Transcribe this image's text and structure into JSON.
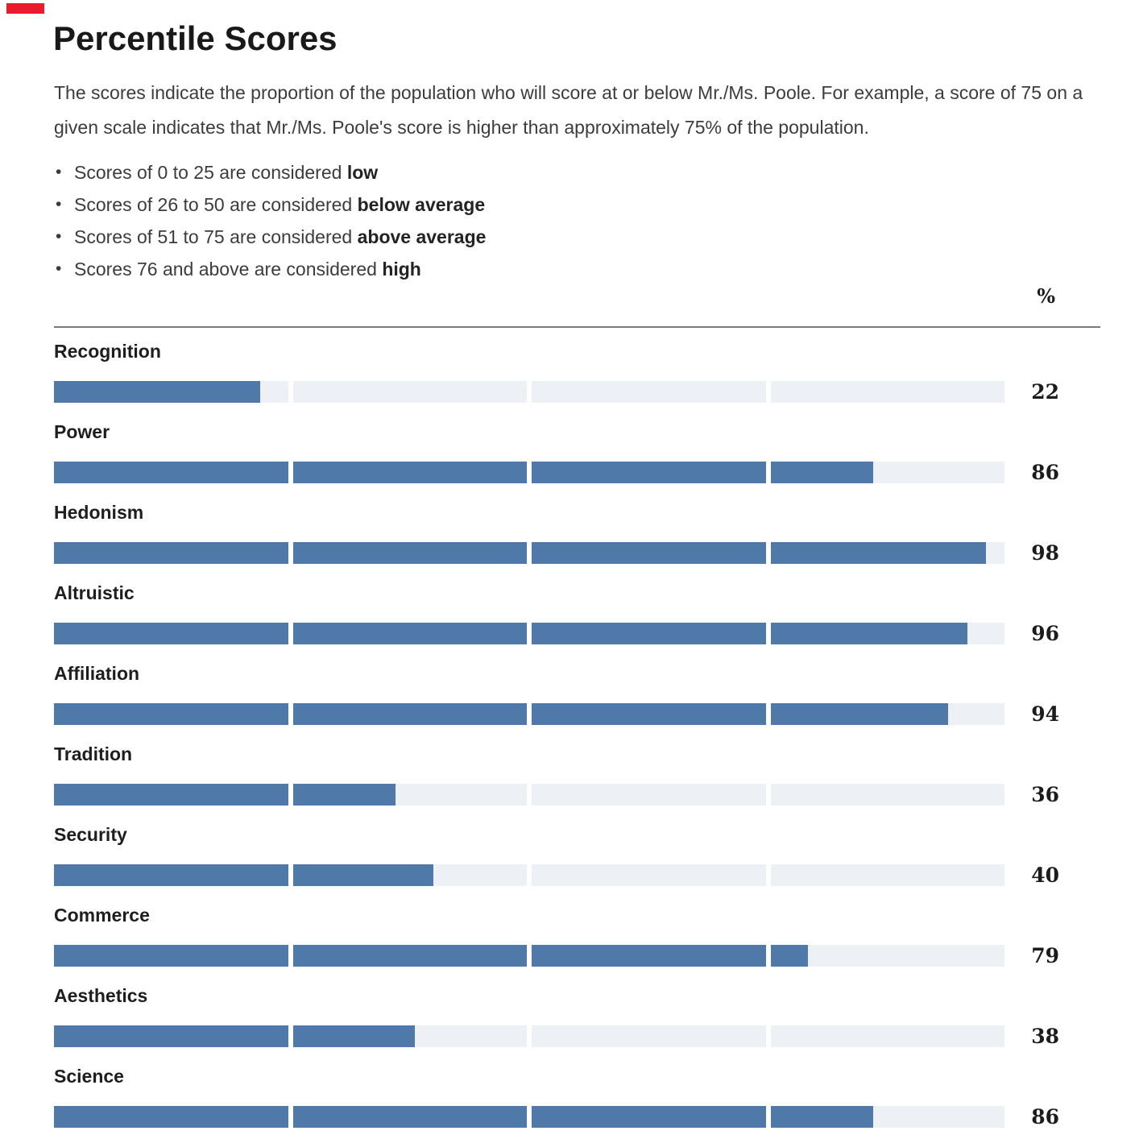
{
  "page": {
    "background": "#ffffff",
    "corner_mark_color": "#ea1b2d"
  },
  "header": {
    "title": "Percentile Scores",
    "description": "The scores indicate the proportion of the population who will score at or below Mr./Ms. Poole. For example, a score of 75 on a given scale indicates that Mr./Ms. Poole's score is higher than approximately 75% of the population.",
    "bullet_icon": "•",
    "legend_bullets": [
      {
        "text": "Scores of 0 to 25 are considered ",
        "bold": "low"
      },
      {
        "text": "Scores of 26 to 50 are considered ",
        "bold": "below average"
      },
      {
        "text": "Scores of 51 to 75 are considered ",
        "bold": "above average"
      },
      {
        "text": "Scores 76 and above are considered ",
        "bold": "high"
      }
    ]
  },
  "chart_data": {
    "type": "bar",
    "orientation": "horizontal",
    "title": "Percentile Scores",
    "column_header": "%",
    "categories": [
      "Recognition",
      "Power",
      "Hedonism",
      "Altruistic",
      "Affiliation",
      "Tradition",
      "Security",
      "Commerce",
      "Aesthetics",
      "Science"
    ],
    "values": [
      22,
      86,
      98,
      96,
      94,
      36,
      40,
      79,
      38,
      86
    ],
    "xlim": [
      0,
      100
    ],
    "segments": 4,
    "segment_span": 25,
    "grid": false,
    "value_labels": "right",
    "bar_color": "#4e79a8",
    "track_color": "#edf0f5"
  }
}
